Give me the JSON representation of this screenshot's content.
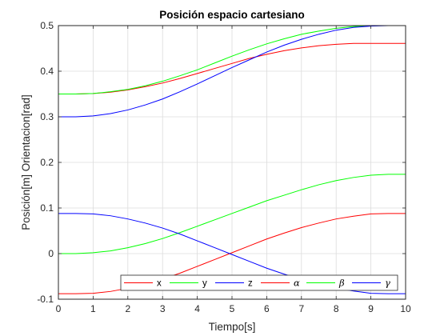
{
  "chart_data": {
    "type": "line",
    "title": "Posición espacio cartesiano",
    "xlabel": "Tiempo[s]",
    "ylabel": "Posición[m] Orientacion[rad]",
    "xlim": [
      0,
      10
    ],
    "ylim": [
      -0.1,
      0.5
    ],
    "xticks": [
      "0",
      "1",
      "2",
      "3",
      "4",
      "5",
      "6",
      "7",
      "8",
      "9",
      "10"
    ],
    "yticks": [
      "-0.1",
      "0",
      "0.1",
      "0.2",
      "0.3",
      "0.4",
      "0.5"
    ],
    "grid": true,
    "legend_position": "bottom-right",
    "legend_orientation": "horizontal",
    "x": [
      0,
      0.5,
      1,
      1.5,
      2,
      2.5,
      3,
      3.5,
      4,
      4.5,
      5,
      5.5,
      6,
      6.5,
      7,
      7.5,
      8,
      8.5,
      9,
      9.5,
      10
    ],
    "series": [
      {
        "name": "x",
        "color": "#ff0000",
        "values": [
          0.35,
          0.35,
          0.351,
          0.354,
          0.359,
          0.366,
          0.374,
          0.384,
          0.395,
          0.406,
          0.417,
          0.428,
          0.437,
          0.445,
          0.451,
          0.456,
          0.459,
          0.461,
          0.461,
          0.461,
          0.461
        ]
      },
      {
        "name": "y",
        "color": "#00ff00",
        "values": [
          0.35,
          0.35,
          0.351,
          0.355,
          0.36,
          0.368,
          0.378,
          0.39,
          0.403,
          0.418,
          0.433,
          0.447,
          0.46,
          0.471,
          0.481,
          0.488,
          0.494,
          0.498,
          0.5,
          0.5,
          0.5
        ]
      },
      {
        "name": "z",
        "color": "#0000ff",
        "values": [
          0.3,
          0.3,
          0.302,
          0.307,
          0.315,
          0.326,
          0.339,
          0.355,
          0.372,
          0.39,
          0.408,
          0.425,
          0.442,
          0.457,
          0.47,
          0.481,
          0.49,
          0.496,
          0.499,
          0.5,
          0.5
        ]
      },
      {
        "name": "α",
        "color": "#ff0000",
        "values": [
          -0.088,
          -0.088,
          -0.087,
          -0.083,
          -0.076,
          -0.067,
          -0.056,
          -0.043,
          -0.028,
          -0.013,
          0.002,
          0.017,
          0.032,
          0.045,
          0.057,
          0.067,
          0.076,
          0.082,
          0.087,
          0.088,
          0.088
        ]
      },
      {
        "name": "β",
        "color": "#00ff00",
        "values": [
          0.0,
          0.0,
          0.002,
          0.006,
          0.013,
          0.022,
          0.033,
          0.046,
          0.06,
          0.074,
          0.088,
          0.102,
          0.116,
          0.128,
          0.14,
          0.151,
          0.16,
          0.167,
          0.172,
          0.174,
          0.174
        ]
      },
      {
        "name": "γ",
        "color": "#0000ff",
        "values": [
          0.088,
          0.088,
          0.087,
          0.083,
          0.076,
          0.067,
          0.056,
          0.043,
          0.028,
          0.013,
          -0.002,
          -0.017,
          -0.032,
          -0.045,
          -0.057,
          -0.067,
          -0.076,
          -0.082,
          -0.087,
          -0.088,
          -0.088
        ]
      }
    ]
  }
}
